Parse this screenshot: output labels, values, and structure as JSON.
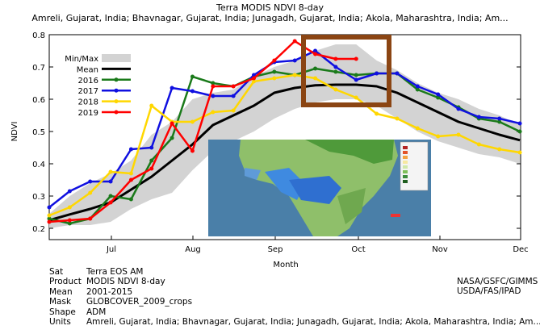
{
  "chart_data": {
    "type": "line",
    "title": "Terra MODIS NDVI 8-day",
    "subtitle": "Amreli, Gujarat, India; Bhavnagar, Gujarat, India; Junagadh, Gujarat, India; Akola, Maharashtra, India; Am...",
    "xlabel": "Month",
    "ylabel": "NDVI",
    "ylim": [
      0.18,
      0.8
    ],
    "yticks": [
      "0.2",
      "0.3",
      "0.4",
      "0.5",
      "0.6",
      "0.7",
      "0.8"
    ],
    "xticks": [
      "Jul",
      "Aug",
      "Sep",
      "Oct",
      "Nov",
      "Dec"
    ],
    "legend_position": "top-left",
    "grid": false,
    "minmax": {
      "name": "Min/Max",
      "color": "#d3d3d3",
      "x": [
        0,
        1,
        2,
        3,
        4,
        5,
        6,
        7,
        8,
        9,
        10,
        11,
        12,
        13,
        14,
        15,
        16,
        17,
        18,
        19,
        20,
        21,
        22,
        23
      ],
      "upper": [
        0.245,
        0.3,
        0.34,
        0.37,
        0.41,
        0.49,
        0.53,
        0.6,
        0.62,
        0.63,
        0.67,
        0.7,
        0.72,
        0.75,
        0.77,
        0.77,
        0.72,
        0.69,
        0.65,
        0.62,
        0.6,
        0.57,
        0.55,
        0.52
      ],
      "lower": [
        0.2,
        0.21,
        0.21,
        0.22,
        0.26,
        0.29,
        0.31,
        0.38,
        0.44,
        0.47,
        0.5,
        0.54,
        0.57,
        0.59,
        0.6,
        0.6,
        0.58,
        0.54,
        0.5,
        0.47,
        0.45,
        0.43,
        0.42,
        0.4
      ]
    },
    "series": [
      {
        "name": "Mean",
        "color": "#000000",
        "x": [
          0,
          1,
          2,
          3,
          4,
          5,
          6,
          7,
          8,
          9,
          10,
          11,
          12,
          13,
          14,
          15,
          16,
          17,
          18,
          19,
          20,
          21,
          22,
          23
        ],
        "values": [
          0.225,
          0.243,
          0.26,
          0.28,
          0.32,
          0.36,
          0.41,
          0.46,
          0.52,
          0.55,
          0.58,
          0.62,
          0.635,
          0.643,
          0.645,
          0.645,
          0.64,
          0.62,
          0.59,
          0.56,
          0.53,
          0.51,
          0.49,
          0.473
        ]
      },
      {
        "name": "2016",
        "color": "#1a7a1a",
        "x": [
          0,
          1,
          2,
          3,
          4,
          5,
          6,
          7,
          8,
          9,
          10,
          11,
          12,
          13,
          14,
          15,
          16,
          17,
          18,
          19,
          20,
          21,
          22,
          23
        ],
        "values": [
          0.23,
          0.215,
          0.23,
          0.3,
          0.29,
          0.41,
          0.48,
          0.67,
          0.65,
          0.64,
          0.67,
          0.685,
          0.675,
          0.695,
          0.685,
          0.675,
          0.68,
          0.68,
          0.63,
          0.605,
          0.575,
          0.54,
          0.53,
          0.5
        ]
      },
      {
        "name": "2017",
        "color": "#1010e0",
        "x": [
          0,
          1,
          2,
          3,
          4,
          5,
          6,
          7,
          8,
          9,
          10,
          11,
          12,
          13,
          14,
          15,
          16,
          17,
          18,
          19,
          20,
          21,
          22,
          23
        ],
        "values": [
          0.265,
          0.315,
          0.345,
          0.345,
          0.445,
          0.45,
          0.635,
          0.625,
          0.61,
          0.61,
          0.675,
          0.715,
          0.72,
          0.75,
          0.7,
          0.66,
          0.68,
          0.68,
          0.64,
          0.615,
          0.57,
          0.545,
          0.54,
          0.525
        ]
      },
      {
        "name": "2018",
        "color": "#ffd700",
        "x": [
          0,
          1,
          2,
          3,
          4,
          5,
          6,
          7,
          8,
          9,
          10,
          11,
          12,
          13,
          14,
          15,
          16,
          17,
          18,
          19,
          20,
          21,
          22,
          23
        ],
        "values": [
          0.24,
          0.265,
          0.31,
          0.375,
          0.37,
          0.58,
          0.53,
          0.53,
          0.56,
          0.565,
          0.655,
          0.665,
          0.675,
          0.665,
          0.63,
          0.605,
          0.555,
          0.54,
          0.51,
          0.485,
          0.49,
          0.46,
          0.445,
          0.435
        ]
      },
      {
        "name": "2019",
        "color": "#ff0000",
        "x": [
          0,
          1,
          2,
          3,
          4,
          5,
          6,
          7,
          8,
          9,
          10,
          11,
          12,
          13,
          14,
          15
        ],
        "values": [
          0.22,
          0.225,
          0.23,
          0.28,
          0.35,
          0.385,
          0.525,
          0.44,
          0.64,
          0.64,
          0.665,
          0.72,
          0.78,
          0.74,
          0.725,
          0.725
        ]
      }
    ],
    "highlight_box_color": "#8b4513"
  },
  "meta": [
    {
      "key": "Sat",
      "value": "Terra EOS AM"
    },
    {
      "key": "Product",
      "value": "MODIS NDVI 8-day"
    },
    {
      "key": "Mean",
      "value": "2001-2015"
    },
    {
      "key": "Mask",
      "value": "GLOBCOVER_2009_crops"
    },
    {
      "key": "Shape",
      "value": "ADM"
    },
    {
      "key": "Units",
      "value": "Amreli, Gujarat, India; Bhavnagar, Gujarat, India; Junagadh, Gujarat, India; Akola, Maharashtra, India; Am..."
    }
  ],
  "credits": [
    "NASA/GSFC/GIMMS",
    "USDA/FAS/IPAD"
  ],
  "inset_map": {
    "description_icon": "india-ndvi-anomaly-map-icon"
  }
}
